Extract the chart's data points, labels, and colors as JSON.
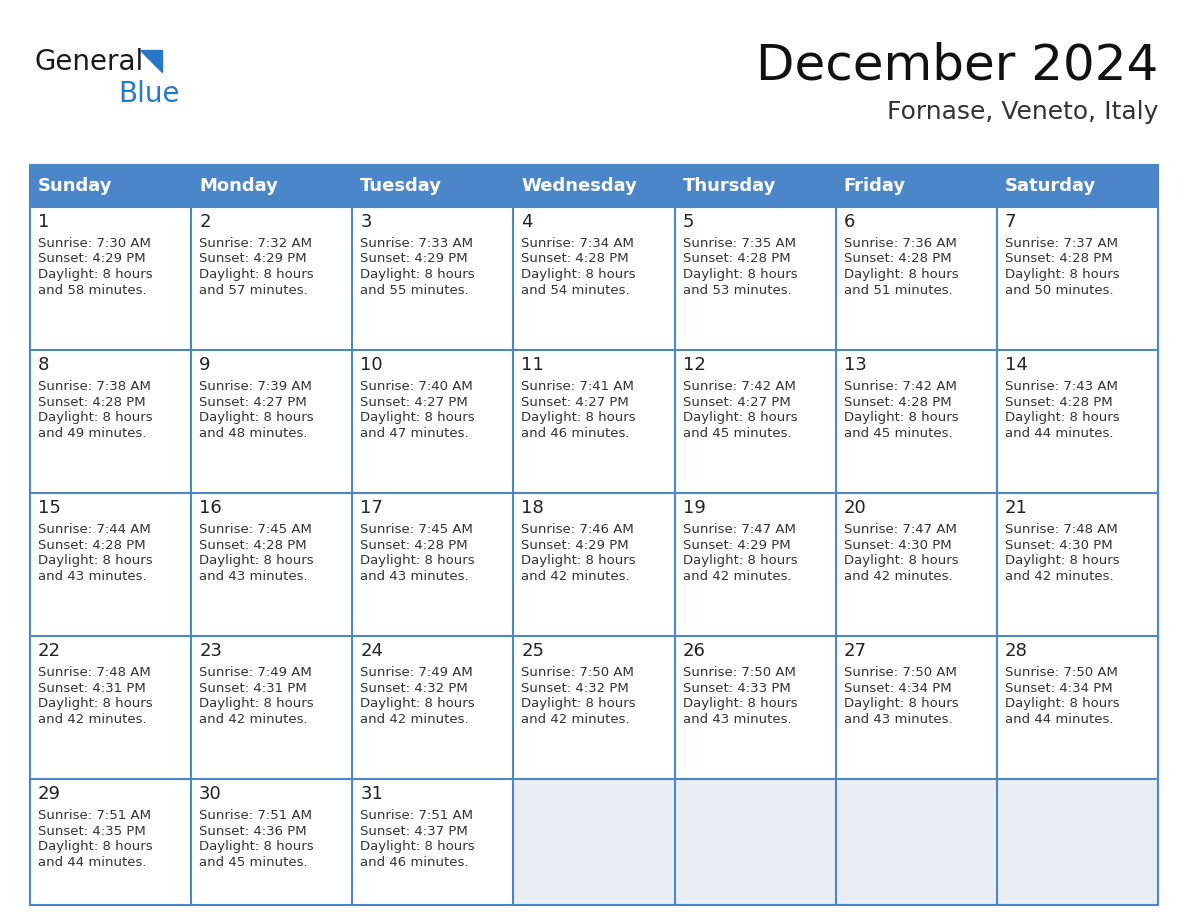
{
  "title": "December 2024",
  "subtitle": "Fornase, Veneto, Italy",
  "header_color": "#4a86c8",
  "header_text_color": "#ffffff",
  "border_color": "#4a86c8",
  "empty_cell_color": "#e8eef4",
  "filled_cell_color": "#ffffff",
  "day_headers": [
    "Sunday",
    "Monday",
    "Tuesday",
    "Wednesday",
    "Thursday",
    "Friday",
    "Saturday"
  ],
  "weeks": [
    [
      {
        "day": 1,
        "sunrise": "7:30 AM",
        "sunset": "4:29 PM",
        "daylight_h": "8 hours",
        "daylight_m": "and 58 minutes."
      },
      {
        "day": 2,
        "sunrise": "7:32 AM",
        "sunset": "4:29 PM",
        "daylight_h": "8 hours",
        "daylight_m": "and 57 minutes."
      },
      {
        "day": 3,
        "sunrise": "7:33 AM",
        "sunset": "4:29 PM",
        "daylight_h": "8 hours",
        "daylight_m": "and 55 minutes."
      },
      {
        "day": 4,
        "sunrise": "7:34 AM",
        "sunset": "4:28 PM",
        "daylight_h": "8 hours",
        "daylight_m": "and 54 minutes."
      },
      {
        "day": 5,
        "sunrise": "7:35 AM",
        "sunset": "4:28 PM",
        "daylight_h": "8 hours",
        "daylight_m": "and 53 minutes."
      },
      {
        "day": 6,
        "sunrise": "7:36 AM",
        "sunset": "4:28 PM",
        "daylight_h": "8 hours",
        "daylight_m": "and 51 minutes."
      },
      {
        "day": 7,
        "sunrise": "7:37 AM",
        "sunset": "4:28 PM",
        "daylight_h": "8 hours",
        "daylight_m": "and 50 minutes."
      }
    ],
    [
      {
        "day": 8,
        "sunrise": "7:38 AM",
        "sunset": "4:28 PM",
        "daylight_h": "8 hours",
        "daylight_m": "and 49 minutes."
      },
      {
        "day": 9,
        "sunrise": "7:39 AM",
        "sunset": "4:27 PM",
        "daylight_h": "8 hours",
        "daylight_m": "and 48 minutes."
      },
      {
        "day": 10,
        "sunrise": "7:40 AM",
        "sunset": "4:27 PM",
        "daylight_h": "8 hours",
        "daylight_m": "and 47 minutes."
      },
      {
        "day": 11,
        "sunrise": "7:41 AM",
        "sunset": "4:27 PM",
        "daylight_h": "8 hours",
        "daylight_m": "and 46 minutes."
      },
      {
        "day": 12,
        "sunrise": "7:42 AM",
        "sunset": "4:27 PM",
        "daylight_h": "8 hours",
        "daylight_m": "and 45 minutes."
      },
      {
        "day": 13,
        "sunrise": "7:42 AM",
        "sunset": "4:28 PM",
        "daylight_h": "8 hours",
        "daylight_m": "and 45 minutes."
      },
      {
        "day": 14,
        "sunrise": "7:43 AM",
        "sunset": "4:28 PM",
        "daylight_h": "8 hours",
        "daylight_m": "and 44 minutes."
      }
    ],
    [
      {
        "day": 15,
        "sunrise": "7:44 AM",
        "sunset": "4:28 PM",
        "daylight_h": "8 hours",
        "daylight_m": "and 43 minutes."
      },
      {
        "day": 16,
        "sunrise": "7:45 AM",
        "sunset": "4:28 PM",
        "daylight_h": "8 hours",
        "daylight_m": "and 43 minutes."
      },
      {
        "day": 17,
        "sunrise": "7:45 AM",
        "sunset": "4:28 PM",
        "daylight_h": "8 hours",
        "daylight_m": "and 43 minutes."
      },
      {
        "day": 18,
        "sunrise": "7:46 AM",
        "sunset": "4:29 PM",
        "daylight_h": "8 hours",
        "daylight_m": "and 42 minutes."
      },
      {
        "day": 19,
        "sunrise": "7:47 AM",
        "sunset": "4:29 PM",
        "daylight_h": "8 hours",
        "daylight_m": "and 42 minutes."
      },
      {
        "day": 20,
        "sunrise": "7:47 AM",
        "sunset": "4:30 PM",
        "daylight_h": "8 hours",
        "daylight_m": "and 42 minutes."
      },
      {
        "day": 21,
        "sunrise": "7:48 AM",
        "sunset": "4:30 PM",
        "daylight_h": "8 hours",
        "daylight_m": "and 42 minutes."
      }
    ],
    [
      {
        "day": 22,
        "sunrise": "7:48 AM",
        "sunset": "4:31 PM",
        "daylight_h": "8 hours",
        "daylight_m": "and 42 minutes."
      },
      {
        "day": 23,
        "sunrise": "7:49 AM",
        "sunset": "4:31 PM",
        "daylight_h": "8 hours",
        "daylight_m": "and 42 minutes."
      },
      {
        "day": 24,
        "sunrise": "7:49 AM",
        "sunset": "4:32 PM",
        "daylight_h": "8 hours",
        "daylight_m": "and 42 minutes."
      },
      {
        "day": 25,
        "sunrise": "7:50 AM",
        "sunset": "4:32 PM",
        "daylight_h": "8 hours",
        "daylight_m": "and 42 minutes."
      },
      {
        "day": 26,
        "sunrise": "7:50 AM",
        "sunset": "4:33 PM",
        "daylight_h": "8 hours",
        "daylight_m": "and 43 minutes."
      },
      {
        "day": 27,
        "sunrise": "7:50 AM",
        "sunset": "4:34 PM",
        "daylight_h": "8 hours",
        "daylight_m": "and 43 minutes."
      },
      {
        "day": 28,
        "sunrise": "7:50 AM",
        "sunset": "4:34 PM",
        "daylight_h": "8 hours",
        "daylight_m": "and 44 minutes."
      }
    ],
    [
      {
        "day": 29,
        "sunrise": "7:51 AM",
        "sunset": "4:35 PM",
        "daylight_h": "8 hours",
        "daylight_m": "and 44 minutes."
      },
      {
        "day": 30,
        "sunrise": "7:51 AM",
        "sunset": "4:36 PM",
        "daylight_h": "8 hours",
        "daylight_m": "and 45 minutes."
      },
      {
        "day": 31,
        "sunrise": "7:51 AM",
        "sunset": "4:37 PM",
        "daylight_h": "8 hours",
        "daylight_m": "and 46 minutes."
      },
      null,
      null,
      null,
      null
    ]
  ],
  "logo_general_color": "#1a1a1a",
  "logo_blue_color": "#2878c8",
  "logo_triangle_color": "#2878c8",
  "title_fontsize": 36,
  "subtitle_fontsize": 18,
  "header_fontsize": 13,
  "day_num_fontsize": 13,
  "cell_text_fontsize": 9.5
}
